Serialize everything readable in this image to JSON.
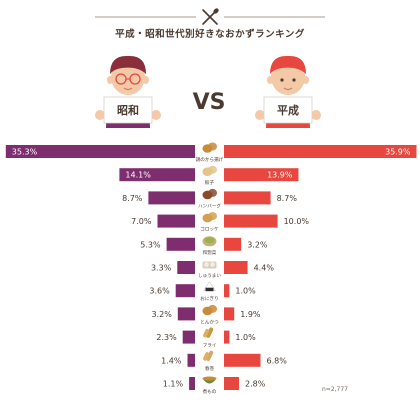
{
  "title": "平成・昭和世代別好きなおかずランキング",
  "vs_label": "VS",
  "left_group": "昭和",
  "right_group": "平成",
  "footnote": "n=2,777",
  "colors": {
    "showa": "#7e2e6f",
    "heisei": "#e8473f",
    "title_rule": "#8a7a6e"
  },
  "chart_data": {
    "type": "bar",
    "orientation": "horizontal-butterfly",
    "categories": [
      "鶏のから揚げ",
      "餃子",
      "ハンバーグ",
      "コロッケ",
      "和惣菜",
      "しゅうまい",
      "おにぎり",
      "とんかつ",
      "フライ",
      "春巻",
      "煮もの"
    ],
    "series": [
      {
        "name": "昭和",
        "unit": "%",
        "values": [
          35.3,
          14.1,
          8.7,
          7.0,
          5.3,
          3.3,
          3.6,
          3.2,
          2.3,
          1.4,
          1.1
        ]
      },
      {
        "name": "平成",
        "unit": "%",
        "values": [
          35.9,
          13.9,
          8.7,
          10.0,
          3.2,
          4.4,
          1.0,
          1.9,
          1.0,
          6.8,
          2.8
        ]
      }
    ],
    "xlim": [
      0,
      36
    ],
    "legend": "top",
    "grid": false
  },
  "icons": [
    "karaage-icon",
    "gyoza-icon",
    "hamburg-icon",
    "croquette-icon",
    "side-dish-icon",
    "shumai-icon",
    "onigiri-icon",
    "tonkatsu-icon",
    "fry-icon",
    "harumaki-icon",
    "nimono-icon"
  ]
}
